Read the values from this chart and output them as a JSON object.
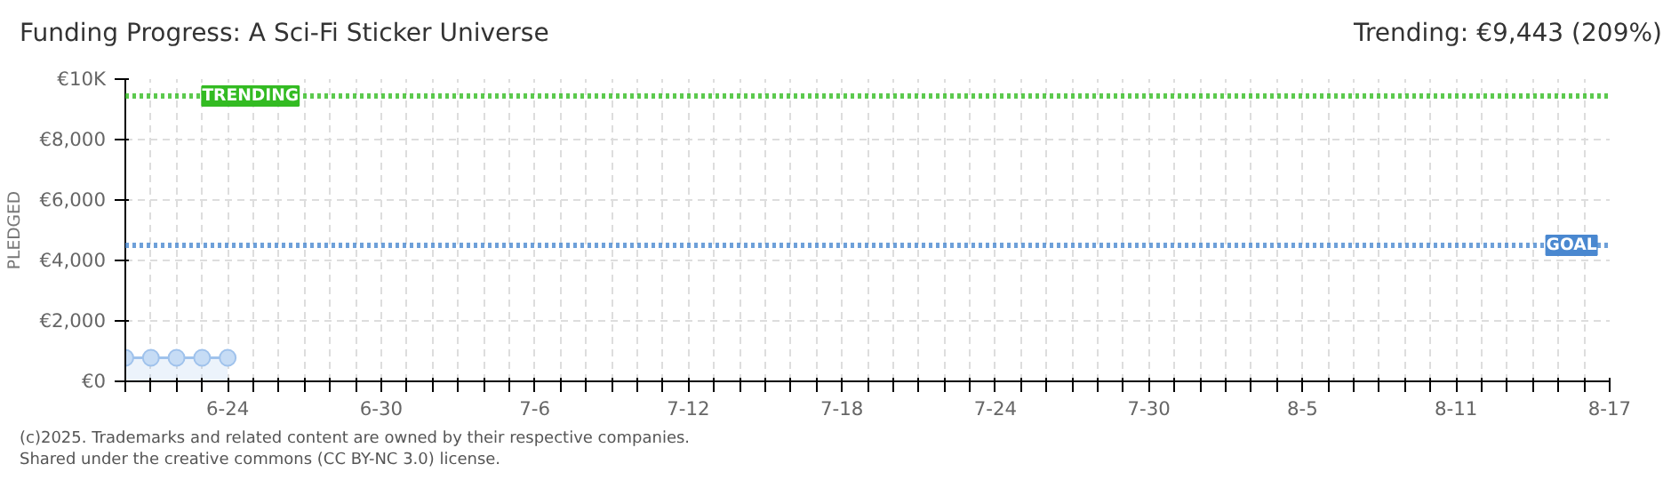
{
  "chart_data": {
    "type": "area",
    "title": "Funding Progress: A Sci-Fi Sticker Universe",
    "subtitle": "Trending: €9,443 (209%)",
    "ylabel": "PLEDGED",
    "x": [
      "2025-06-20",
      "2025-06-21",
      "2025-06-22",
      "2025-06-23",
      "2025-06-24"
    ],
    "series": [
      {
        "color": "#9fc2ec",
        "values": [
          780,
          780,
          780,
          780,
          780
        ]
      }
    ],
    "marker": "circle",
    "grid": true,
    "xlim": [
      "2025-06-20",
      "2025-08-17"
    ],
    "xticks": [
      {
        "value": "2025-06-20",
        "label": null
      },
      {
        "value": "2025-06-21",
        "label": null
      },
      {
        "value": "2025-06-22",
        "label": null
      },
      {
        "value": "2025-06-23",
        "label": null
      },
      {
        "value": "2025-06-24",
        "label": "6-24"
      },
      {
        "value": "2025-06-25",
        "label": null
      },
      {
        "value": "2025-06-26",
        "label": null
      },
      {
        "value": "2025-06-27",
        "label": null
      },
      {
        "value": "2025-06-28",
        "label": null
      },
      {
        "value": "2025-06-29",
        "label": null
      },
      {
        "value": "2025-06-30",
        "label": "6-30"
      },
      {
        "value": "2025-07-01",
        "label": null
      },
      {
        "value": "2025-07-02",
        "label": null
      },
      {
        "value": "2025-07-03",
        "label": null
      },
      {
        "value": "2025-07-04",
        "label": null
      },
      {
        "value": "2025-07-05",
        "label": null
      },
      {
        "value": "2025-07-06",
        "label": "7-6"
      },
      {
        "value": "2025-07-07",
        "label": null
      },
      {
        "value": "2025-07-08",
        "label": null
      },
      {
        "value": "2025-07-09",
        "label": null
      },
      {
        "value": "2025-07-10",
        "label": null
      },
      {
        "value": "2025-07-11",
        "label": null
      },
      {
        "value": "2025-07-12",
        "label": "7-12"
      },
      {
        "value": "2025-07-13",
        "label": null
      },
      {
        "value": "2025-07-14",
        "label": null
      },
      {
        "value": "2025-07-15",
        "label": null
      },
      {
        "value": "2025-07-16",
        "label": null
      },
      {
        "value": "2025-07-17",
        "label": null
      },
      {
        "value": "2025-07-18",
        "label": "7-18"
      },
      {
        "value": "2025-07-19",
        "label": null
      },
      {
        "value": "2025-07-20",
        "label": null
      },
      {
        "value": "2025-07-21",
        "label": null
      },
      {
        "value": "2025-07-22",
        "label": null
      },
      {
        "value": "2025-07-23",
        "label": null
      },
      {
        "value": "2025-07-24",
        "label": "7-24"
      },
      {
        "value": "2025-07-25",
        "label": null
      },
      {
        "value": "2025-07-26",
        "label": null
      },
      {
        "value": "2025-07-27",
        "label": null
      },
      {
        "value": "2025-07-28",
        "label": null
      },
      {
        "value": "2025-07-29",
        "label": null
      },
      {
        "value": "2025-07-30",
        "label": "7-30"
      },
      {
        "value": "2025-07-31",
        "label": null
      },
      {
        "value": "2025-08-01",
        "label": null
      },
      {
        "value": "2025-08-02",
        "label": null
      },
      {
        "value": "2025-08-03",
        "label": null
      },
      {
        "value": "2025-08-04",
        "label": null
      },
      {
        "value": "2025-08-05",
        "label": "8-5"
      },
      {
        "value": "2025-08-06",
        "label": null
      },
      {
        "value": "2025-08-07",
        "label": null
      },
      {
        "value": "2025-08-08",
        "label": null
      },
      {
        "value": "2025-08-09",
        "label": null
      },
      {
        "value": "2025-08-10",
        "label": null
      },
      {
        "value": "2025-08-11",
        "label": "8-11"
      },
      {
        "value": "2025-08-12",
        "label": null
      },
      {
        "value": "2025-08-13",
        "label": null
      },
      {
        "value": "2025-08-14",
        "label": null
      },
      {
        "value": "2025-08-15",
        "label": null
      },
      {
        "value": "2025-08-16",
        "label": null
      },
      {
        "value": "2025-08-17",
        "label": "8-17"
      }
    ],
    "ylim": [
      0,
      10000
    ],
    "yticks": [
      {
        "value": 0,
        "label": "€0"
      },
      {
        "value": 2000,
        "label": "€2,000"
      },
      {
        "value": 4000,
        "label": "€4,000"
      },
      {
        "value": 6000,
        "label": "€6,000"
      },
      {
        "value": 8000,
        "label": "€8,000"
      },
      {
        "value": 10000,
        "label": "€10K"
      }
    ],
    "ref_lines": [
      {
        "axis": "y",
        "value": 9443,
        "label": "TRENDING",
        "color": "#33bb22",
        "line_style": "dotted"
      },
      {
        "axis": "y",
        "value": 4500,
        "label": "GOAL",
        "color": "#4a88d0",
        "line_style": "dotted"
      }
    ],
    "annotations": [
      "(c)2025. Trademarks and related content are owned by their respective companies.",
      "Shared under the creative commons (CC BY-NC 3.0) license."
    ]
  }
}
